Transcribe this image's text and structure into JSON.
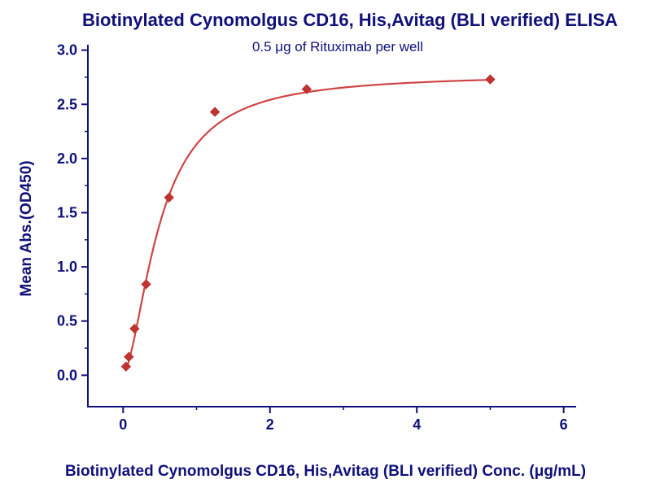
{
  "chart_data": {
    "type": "scatter",
    "title": "Biotinylated Cynomolgus CD16, His,Avitag (BLI verified) ELISA",
    "subtitle": "0.5 μg of Rituximab per well",
    "xlabel": "Biotinylated Cynomolgus CD16, His,Avitag (BLI verified) Conc. (μg/mL)",
    "ylabel": "Mean Abs.(OD450)",
    "x": [
      0.039,
      0.078,
      0.156,
      0.313,
      0.625,
      1.25,
      2.5,
      5.0
    ],
    "y": [
      0.08,
      0.17,
      0.43,
      0.84,
      1.64,
      2.43,
      2.64,
      2.73
    ],
    "xlim": [
      -0.48,
      6.17
    ],
    "ylim": [
      -0.29,
      3.05
    ],
    "x_ticks": [
      0,
      2,
      4,
      6
    ],
    "x_minor_ticks": [
      1,
      3,
      5
    ],
    "y_ticks": [
      0.0,
      0.5,
      1.0,
      1.5,
      2.0,
      2.5,
      3.0
    ],
    "y_tick_decimals": 1,
    "fit_curve": {
      "model": "4PL",
      "min": 0.02,
      "max": 2.78,
      "ec50": 0.5,
      "hill": 1.7,
      "x_start": 0.035,
      "x_end": 5.0
    },
    "legend": null,
    "grid": "off",
    "colors": {
      "line": "#cf4444",
      "marker": "#bf3333",
      "text": "#10107a",
      "axis": "#10107a",
      "background": "#ffffff"
    }
  }
}
